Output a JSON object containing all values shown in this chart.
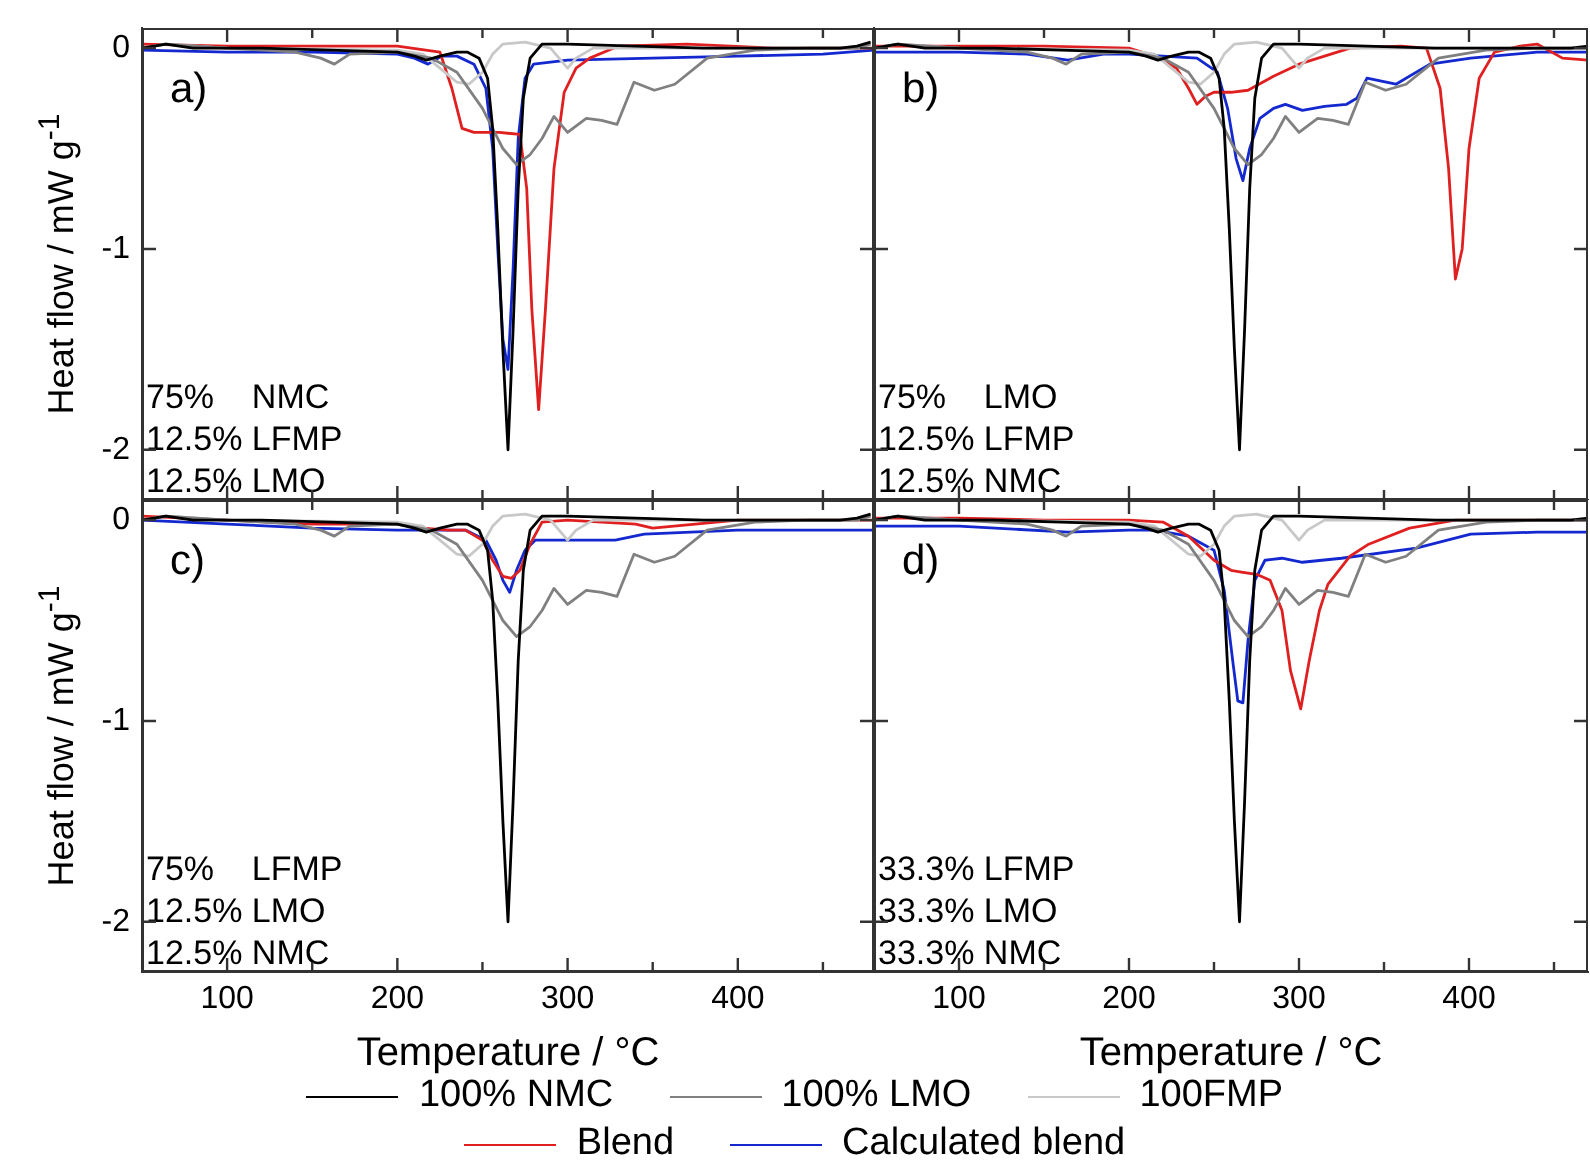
{
  "chart_data": [
    {
      "type": "line",
      "ylabel": "Heat flow / mW g$^{-1}$",
      "xlim": [
        50,
        480
      ],
      "ylim": [
        -2.25,
        0.1
      ],
      "xticks": [
        100,
        {
          "value": 150,
          "label": null
        },
        200,
        {
          "value": 250,
          "label": null
        },
        300,
        {
          "value": 350,
          "label": null
        },
        400,
        {
          "value": 450,
          "label": null
        }
      ],
      "yticks": [
        0,
        -1,
        -2
      ],
      "tick_labels": "y",
      "grid": false,
      "legend": false,
      "marker": "none",
      "line_style": "solid",
      "annotations": [
        "a)",
        "75% NMC",
        "12.5% LFMP",
        "12.5% LMO"
      ],
      "series": [
        {
          "color": "#000000",
          "x": [
            50,
            64,
            80,
            120,
            160,
            200,
            210,
            217,
            225,
            235,
            241,
            248,
            253,
            256,
            259,
            262,
            265,
            268,
            271,
            274,
            278,
            285,
            300,
            340,
            380,
            420,
            460,
            470,
            478
          ],
          "values": [
            0,
            0.02,
            0,
            0,
            -0.01,
            -0.02,
            -0.04,
            -0.06,
            -0.04,
            -0.02,
            -0.02,
            -0.05,
            -0.15,
            -0.4,
            -0.9,
            -1.5,
            -2.0,
            -1.4,
            -0.7,
            -0.25,
            -0.05,
            0.02,
            0.02,
            0.01,
            0,
            0,
            0,
            0.01,
            0.03
          ]
        },
        {
          "color": "#808080",
          "x": [
            50,
            64,
            100,
            140,
            155,
            163,
            172,
            200,
            220,
            235,
            250,
            262,
            270,
            278,
            285,
            292,
            300,
            311,
            320,
            329,
            339,
            351,
            363,
            382,
            410,
            440,
            470,
            478
          ],
          "values": [
            0,
            0.02,
            0,
            -0.02,
            -0.05,
            -0.08,
            -0.03,
            -0.02,
            -0.05,
            -0.12,
            -0.3,
            -0.5,
            -0.58,
            -0.53,
            -0.45,
            -0.34,
            -0.42,
            -0.35,
            -0.36,
            -0.38,
            -0.17,
            -0.21,
            -0.18,
            -0.05,
            -0.01,
            0,
            0,
            0.02
          ]
        },
        {
          "color": "#c8c8c8",
          "x": [
            50,
            64,
            100,
            200,
            215,
            225,
            235,
            242,
            250,
            256,
            262,
            275,
            290,
            295,
            300,
            305,
            315,
            350,
            400,
            470,
            478
          ],
          "values": [
            0,
            0.02,
            0,
            -0.01,
            -0.03,
            -0.1,
            -0.17,
            -0.18,
            -0.12,
            -0.03,
            0.02,
            0.03,
            0,
            -0.05,
            -0.1,
            -0.05,
            0,
            0,
            0,
            0,
            0.02
          ]
        },
        {
          "color": "#e02020",
          "x": [
            50,
            100,
            150,
            200,
            225,
            232,
            238,
            245,
            260,
            272,
            276,
            279,
            283,
            287,
            292,
            298,
            305,
            313,
            330,
            370,
            420,
            470,
            480
          ],
          "values": [
            0.02,
            0.01,
            0.01,
            0.01,
            -0.02,
            -0.2,
            -0.4,
            -0.42,
            -0.42,
            -0.43,
            -0.7,
            -1.3,
            -1.8,
            -1.3,
            -0.6,
            -0.22,
            -0.1,
            -0.05,
            0.01,
            0.02,
            0,
            0,
            0
          ]
        },
        {
          "color": "#1428d0",
          "x": [
            50,
            100,
            150,
            200,
            210,
            218,
            226,
            235,
            245,
            252,
            256,
            259,
            262,
            265,
            268,
            271,
            275,
            280,
            300,
            350,
            400,
            450,
            480
          ],
          "values": [
            -0.01,
            -0.02,
            -0.02,
            -0.03,
            -0.05,
            -0.08,
            -0.04,
            -0.04,
            -0.08,
            -0.2,
            -0.5,
            -1.0,
            -1.45,
            -1.6,
            -1.1,
            -0.45,
            -0.15,
            -0.08,
            -0.06,
            -0.05,
            -0.04,
            -0.03,
            -0.01
          ]
        }
      ]
    },
    {
      "type": "line",
      "xlim": [
        50,
        470
      ],
      "ylim": [
        -2.25,
        0.1
      ],
      "xticks": [
        100,
        {
          "value": 150,
          "label": null
        },
        200,
        {
          "value": 250,
          "label": null
        },
        300,
        {
          "value": 350,
          "label": null
        },
        400,
        {
          "value": 450,
          "label": null
        }
      ],
      "yticks": [
        0,
        -1,
        -2
      ],
      "tick_labels": false,
      "grid": false,
      "legend": false,
      "marker": "none",
      "line_style": "solid",
      "annotations": [
        "b)",
        "75% LMO",
        "12.5% LFMP",
        "12.5% NMC"
      ],
      "series": [
        {
          "color": "#000000",
          "x": [
            50,
            64,
            80,
            120,
            160,
            200,
            210,
            217,
            225,
            235,
            241,
            248,
            253,
            256,
            259,
            262,
            265,
            268,
            271,
            274,
            278,
            285,
            300,
            340,
            380,
            420,
            460,
            470
          ],
          "values": [
            0,
            0.02,
            0,
            0,
            -0.01,
            -0.02,
            -0.04,
            -0.06,
            -0.04,
            -0.02,
            -0.02,
            -0.05,
            -0.15,
            -0.4,
            -0.9,
            -1.5,
            -2.0,
            -1.4,
            -0.7,
            -0.25,
            -0.05,
            0.02,
            0.02,
            0.01,
            0,
            0,
            0,
            0.01
          ]
        },
        {
          "color": "#808080",
          "x": [
            50,
            64,
            100,
            140,
            155,
            163,
            172,
            200,
            220,
            235,
            250,
            262,
            270,
            278,
            285,
            292,
            300,
            311,
            320,
            329,
            339,
            351,
            363,
            382,
            410,
            440,
            470
          ],
          "values": [
            0,
            0.02,
            0,
            -0.02,
            -0.05,
            -0.08,
            -0.03,
            -0.02,
            -0.05,
            -0.12,
            -0.3,
            -0.5,
            -0.58,
            -0.53,
            -0.45,
            -0.34,
            -0.42,
            -0.35,
            -0.36,
            -0.38,
            -0.17,
            -0.21,
            -0.18,
            -0.05,
            -0.01,
            0,
            0
          ]
        },
        {
          "color": "#c8c8c8",
          "x": [
            50,
            64,
            100,
            200,
            215,
            225,
            235,
            242,
            250,
            256,
            262,
            275,
            290,
            295,
            300,
            305,
            315,
            350,
            400,
            470
          ],
          "values": [
            0,
            0.02,
            0,
            -0.01,
            -0.03,
            -0.1,
            -0.17,
            -0.18,
            -0.12,
            -0.03,
            0.02,
            0.03,
            0,
            -0.05,
            -0.1,
            -0.05,
            0,
            0,
            0,
            0
          ]
        },
        {
          "color": "#e02020",
          "x": [
            50,
            100,
            150,
            200,
            215,
            228,
            235,
            240,
            245,
            250,
            260,
            270,
            285,
            300,
            330,
            360,
            375,
            383,
            388,
            392,
            396,
            400,
            406,
            415,
            430,
            440,
            455,
            470
          ],
          "values": [
            0.01,
            0.01,
            0.01,
            0,
            -0.04,
            -0.1,
            -0.2,
            -0.28,
            -0.24,
            -0.22,
            -0.22,
            -0.21,
            -0.14,
            -0.08,
            0,
            0.01,
            0,
            -0.2,
            -0.6,
            -1.15,
            -1.0,
            -0.5,
            -0.15,
            -0.02,
            0.01,
            0.02,
            -0.05,
            -0.06
          ]
        },
        {
          "color": "#1428d0",
          "x": [
            50,
            100,
            140,
            164,
            185,
            200,
            220,
            240,
            252,
            258,
            263,
            267,
            271,
            277,
            285,
            292,
            302,
            315,
            328,
            334,
            340,
            357,
            377,
            401,
            440,
            470
          ],
          "values": [
            -0.02,
            -0.02,
            -0.03,
            -0.06,
            -0.03,
            -0.03,
            -0.04,
            -0.05,
            -0.12,
            -0.3,
            -0.55,
            -0.66,
            -0.5,
            -0.35,
            -0.3,
            -0.28,
            -0.31,
            -0.29,
            -0.28,
            -0.25,
            -0.15,
            -0.18,
            -0.08,
            -0.05,
            -0.02,
            -0.02
          ]
        }
      ]
    },
    {
      "type": "line",
      "xlabel": "Temperature / °C",
      "ylabel": "Heat flow / mW g$^{-1}$",
      "xlim": [
        50,
        480
      ],
      "ylim": [
        -2.25,
        0.1
      ],
      "xticks": [
        100,
        {
          "value": 150,
          "label": null
        },
        200,
        {
          "value": 250,
          "label": null
        },
        300,
        {
          "value": 350,
          "label": null
        },
        400,
        {
          "value": 450,
          "label": null
        }
      ],
      "yticks": [
        0,
        -1,
        -2
      ],
      "grid": false,
      "legend": "bottom",
      "marker": "none",
      "line_style": "solid",
      "annotations": [
        "c)",
        "75% LFMP",
        "12.5% LMO",
        "12.5% NMC"
      ],
      "series": [
        {
          "name": "100% NMC",
          "color": "#000000",
          "x": [
            50,
            64,
            80,
            120,
            160,
            200,
            210,
            217,
            225,
            235,
            241,
            248,
            253,
            256,
            259,
            262,
            265,
            268,
            271,
            274,
            278,
            285,
            300,
            340,
            380,
            420,
            460,
            470,
            478
          ],
          "values": [
            0,
            0.02,
            0,
            0,
            -0.01,
            -0.02,
            -0.04,
            -0.06,
            -0.04,
            -0.02,
            -0.02,
            -0.05,
            -0.15,
            -0.4,
            -0.9,
            -1.5,
            -2.0,
            -1.4,
            -0.7,
            -0.25,
            -0.05,
            0.02,
            0.02,
            0.01,
            0,
            0,
            0,
            0.01,
            0.03
          ]
        },
        {
          "name": "100% LMO",
          "color": "#808080",
          "x": [
            50,
            64,
            100,
            140,
            155,
            163,
            172,
            200,
            220,
            235,
            250,
            262,
            270,
            278,
            285,
            292,
            300,
            311,
            320,
            329,
            339,
            351,
            363,
            382,
            410,
            440,
            470,
            478
          ],
          "values": [
            0,
            0.02,
            0,
            -0.02,
            -0.05,
            -0.08,
            -0.03,
            -0.02,
            -0.05,
            -0.12,
            -0.3,
            -0.5,
            -0.58,
            -0.53,
            -0.45,
            -0.34,
            -0.42,
            -0.35,
            -0.36,
            -0.38,
            -0.17,
            -0.21,
            -0.18,
            -0.05,
            -0.01,
            0,
            0,
            0.02
          ]
        },
        {
          "name": "100FMP",
          "color": "#c8c8c8",
          "x": [
            50,
            64,
            100,
            200,
            215,
            225,
            235,
            242,
            250,
            256,
            262,
            275,
            290,
            295,
            300,
            305,
            315,
            350,
            400,
            470,
            478
          ],
          "values": [
            0,
            0.02,
            0,
            -0.01,
            -0.03,
            -0.1,
            -0.17,
            -0.18,
            -0.12,
            -0.03,
            0.02,
            0.03,
            0,
            -0.05,
            -0.1,
            -0.05,
            0,
            0,
            0,
            0,
            0.02
          ]
        },
        {
          "name": "Blend",
          "color": "#e02020",
          "x": [
            50,
            100,
            150,
            200,
            215,
            230,
            240,
            250,
            256,
            262,
            267,
            272,
            278,
            285,
            300,
            340,
            350,
            400,
            480
          ],
          "values": [
            0.02,
            0,
            -0.02,
            -0.02,
            -0.04,
            -0.05,
            -0.05,
            -0.1,
            -0.2,
            -0.28,
            -0.29,
            -0.25,
            -0.12,
            -0.01,
            0,
            -0.02,
            -0.04,
            0,
            0
          ]
        },
        {
          "name": "Calculated blend",
          "color": "#1428d0",
          "x": [
            50,
            100,
            150,
            200,
            240,
            252,
            258,
            262,
            266,
            270,
            275,
            281,
            300,
            328,
            345,
            400,
            480
          ],
          "values": [
            0,
            -0.02,
            -0.04,
            -0.05,
            -0.05,
            -0.1,
            -0.2,
            -0.3,
            -0.36,
            -0.25,
            -0.15,
            -0.1,
            -0.1,
            -0.1,
            -0.07,
            -0.05,
            -0.05
          ]
        }
      ]
    },
    {
      "type": "line",
      "xlabel": "Temperature / °C",
      "xlim": [
        50,
        470
      ],
      "ylim": [
        -2.25,
        0.1
      ],
      "xticks": [
        100,
        {
          "value": 150,
          "label": null
        },
        200,
        {
          "value": 250,
          "label": null
        },
        300,
        {
          "value": 350,
          "label": null
        },
        400,
        {
          "value": 450,
          "label": null
        }
      ],
      "yticks": [
        0,
        -1,
        -2
      ],
      "tick_labels": "x",
      "grid": false,
      "legend": false,
      "marker": "none",
      "line_style": "solid",
      "annotations": [
        "d)",
        "33.3% LFMP",
        "33.3% LMO",
        "33.3% NMC"
      ],
      "series": [
        {
          "color": "#000000",
          "x": [
            50,
            64,
            80,
            120,
            160,
            200,
            210,
            217,
            225,
            235,
            241,
            248,
            253,
            256,
            259,
            262,
            265,
            268,
            271,
            274,
            278,
            285,
            300,
            340,
            380,
            420,
            460,
            470
          ],
          "values": [
            0,
            0.02,
            0,
            0,
            -0.01,
            -0.02,
            -0.04,
            -0.06,
            -0.04,
            -0.02,
            -0.02,
            -0.05,
            -0.15,
            -0.4,
            -0.9,
            -1.5,
            -2.0,
            -1.4,
            -0.7,
            -0.25,
            -0.05,
            0.02,
            0.02,
            0.01,
            0,
            0,
            0,
            0.01
          ]
        },
        {
          "color": "#808080",
          "x": [
            50,
            64,
            100,
            140,
            155,
            163,
            172,
            200,
            220,
            235,
            250,
            262,
            270,
            278,
            285,
            292,
            300,
            311,
            320,
            329,
            339,
            351,
            363,
            382,
            410,
            440,
            470
          ],
          "values": [
            0,
            0.02,
            0,
            -0.02,
            -0.05,
            -0.08,
            -0.03,
            -0.02,
            -0.05,
            -0.12,
            -0.3,
            -0.5,
            -0.58,
            -0.53,
            -0.45,
            -0.34,
            -0.42,
            -0.35,
            -0.36,
            -0.38,
            -0.17,
            -0.21,
            -0.18,
            -0.05,
            -0.01,
            0,
            0
          ]
        },
        {
          "color": "#c8c8c8",
          "x": [
            50,
            64,
            100,
            200,
            215,
            225,
            235,
            242,
            250,
            256,
            262,
            275,
            290,
            295,
            300,
            305,
            315,
            350,
            400,
            470
          ],
          "values": [
            0,
            0.02,
            0,
            -0.01,
            -0.03,
            -0.1,
            -0.17,
            -0.18,
            -0.12,
            -0.03,
            0.02,
            0.03,
            0,
            -0.05,
            -0.1,
            -0.05,
            0,
            0,
            0,
            0
          ]
        },
        {
          "color": "#e02020",
          "x": [
            50,
            100,
            150,
            200,
            220,
            235,
            250,
            260,
            267,
            275,
            283,
            290,
            295,
            301,
            306,
            312,
            317,
            330,
            341,
            365,
            392,
            430,
            470
          ],
          "values": [
            0.01,
            0.01,
            0,
            0,
            -0.01,
            -0.08,
            -0.2,
            -0.25,
            -0.26,
            -0.27,
            -0.3,
            -0.45,
            -0.75,
            -0.94,
            -0.7,
            -0.45,
            -0.32,
            -0.18,
            -0.12,
            -0.04,
            0,
            0,
            0
          ]
        },
        {
          "color": "#1428d0",
          "x": [
            50,
            100,
            164,
            200,
            215,
            235,
            250,
            256,
            261,
            264,
            267,
            270,
            274,
            280,
            290,
            302,
            325,
            369,
            401,
            440,
            470
          ],
          "values": [
            -0.03,
            -0.03,
            -0.06,
            -0.05,
            -0.05,
            -0.08,
            -0.15,
            -0.35,
            -0.7,
            -0.9,
            -0.91,
            -0.6,
            -0.3,
            -0.2,
            -0.19,
            -0.21,
            -0.19,
            -0.14,
            -0.07,
            -0.06,
            -0.06
          ]
        }
      ]
    }
  ]
}
